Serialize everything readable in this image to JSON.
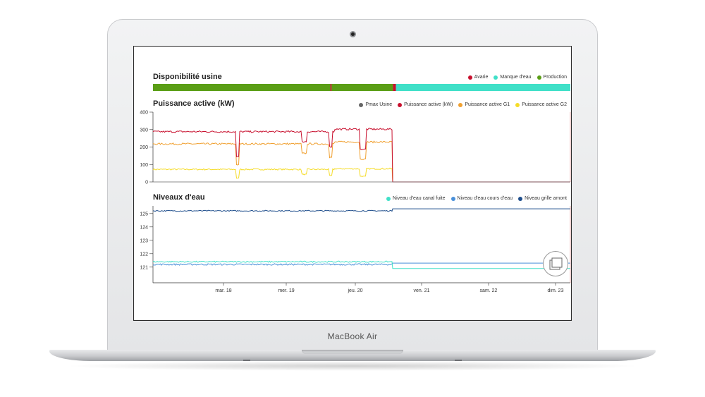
{
  "device": {
    "label": "MacBook Air"
  },
  "availability": {
    "title": "Disponibilité usine",
    "legend": [
      {
        "label": "Avarie",
        "color": "#c8102e"
      },
      {
        "label": "Manque d'eau",
        "color": "#40e0c8"
      },
      {
        "label": "Production",
        "color": "#5a9e16"
      }
    ]
  },
  "power": {
    "title": "Puissance active (kW)",
    "legend": [
      {
        "label": "Pmax Usine",
        "color": "#666666"
      },
      {
        "label": "Puissance active (kW)",
        "color": "#c8102e"
      },
      {
        "label": "Puissance active G1",
        "color": "#f0a030"
      },
      {
        "label": "Puissance active G2",
        "color": "#f5dc28"
      }
    ],
    "y_ticks": [
      "400",
      "300",
      "200",
      "100",
      "0"
    ]
  },
  "water": {
    "title": "Niveaux d'eau",
    "legend": [
      {
        "label": "Niveau d'eau canal fuite",
        "color": "#40e0c8"
      },
      {
        "label": "Niveau d'eau cours d'eau",
        "color": "#4a90d9"
      },
      {
        "label": "Niveau grille amont",
        "color": "#1f4e8c"
      }
    ],
    "y_ticks": [
      "125",
      "124",
      "123",
      "122",
      "121"
    ]
  },
  "x_axis": {
    "ticks": [
      "mar. 18",
      "mer. 19",
      "jeu. 20",
      "ven. 21",
      "sam. 22",
      "dim. 23"
    ]
  },
  "chart_data": [
    {
      "type": "area",
      "title": "Disponibilité usine",
      "segments": [
        {
          "state": "Production",
          "from": 0.0,
          "to": 0.425
        },
        {
          "state": "Avarie",
          "from": 0.425,
          "to": 0.428
        },
        {
          "state": "Production",
          "from": 0.428,
          "to": 0.575
        },
        {
          "state": "Avarie",
          "from": 0.575,
          "to": 0.582
        },
        {
          "state": "Manque d'eau",
          "from": 0.582,
          "to": 1.0
        }
      ]
    },
    {
      "type": "line",
      "title": "Puissance active (kW)",
      "ylim": [
        0,
        400
      ],
      "x": [
        "mar. 18",
        "mer. 19",
        "jeu. 20",
        "ven. 21",
        "sam. 22",
        "dim. 23"
      ],
      "series": [
        {
          "name": "Puissance active (kW)",
          "values": [
            290,
            285,
            300,
            0,
            0,
            0
          ]
        },
        {
          "name": "Puissance active G1",
          "values": [
            220,
            215,
            205,
            0,
            0,
            0
          ]
        },
        {
          "name": "Puissance active G2",
          "values": [
            70,
            70,
            80,
            0,
            0,
            0
          ]
        },
        {
          "name": "Pmax Usine",
          "values": [
            0,
            0,
            0,
            0,
            0,
            0
          ]
        }
      ]
    },
    {
      "type": "line",
      "title": "Niveaux d'eau",
      "ylim": [
        120.5,
        125.5
      ],
      "x": [
        "mar. 18",
        "mer. 19",
        "jeu. 20",
        "ven. 21",
        "sam. 22",
        "dim. 23"
      ],
      "series": [
        {
          "name": "Niveau grille amont",
          "values": [
            125.2,
            125.2,
            125.2,
            125.3,
            125.3,
            125.3
          ]
        },
        {
          "name": "Niveau d'eau canal fuite",
          "values": [
            121.4,
            121.4,
            121.3,
            120.9,
            120.9,
            120.9
          ]
        },
        {
          "name": "Niveau d'eau cours d'eau",
          "values": [
            121.2,
            121.2,
            121.2,
            121.3,
            121.3,
            121.3
          ]
        }
      ]
    }
  ]
}
